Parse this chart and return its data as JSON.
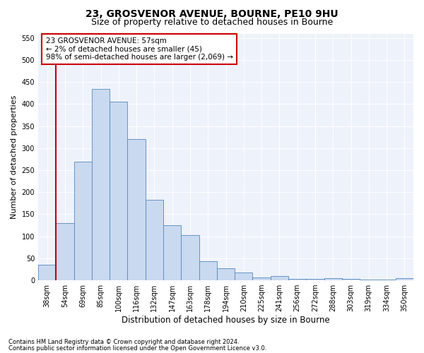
{
  "title1": "23, GROSVENOR AVENUE, BOURNE, PE10 9HU",
  "title2": "Size of property relative to detached houses in Bourne",
  "xlabel": "Distribution of detached houses by size in Bourne",
  "ylabel": "Number of detached properties",
  "categories": [
    "38sqm",
    "54sqm",
    "69sqm",
    "85sqm",
    "100sqm",
    "116sqm",
    "132sqm",
    "147sqm",
    "163sqm",
    "178sqm",
    "194sqm",
    "210sqm",
    "225sqm",
    "241sqm",
    "256sqm",
    "272sqm",
    "288sqm",
    "303sqm",
    "319sqm",
    "334sqm",
    "350sqm"
  ],
  "bar_values": [
    35,
    130,
    270,
    435,
    405,
    320,
    183,
    125,
    103,
    44,
    28,
    17,
    7,
    10,
    3,
    3,
    5,
    3,
    2,
    2,
    5
  ],
  "bar_color": "#c9d9f0",
  "bar_edge_color": "#5588bb",
  "vline_color": "#cc0000",
  "annotation_text": "23 GROSVENOR AVENUE: 57sqm\n← 2% of detached houses are smaller (45)\n98% of semi-detached houses are larger (2,069) →",
  "ylim": [
    0,
    560
  ],
  "yticks": [
    0,
    50,
    100,
    150,
    200,
    250,
    300,
    350,
    400,
    450,
    500,
    550
  ],
  "footer1": "Contains HM Land Registry data © Crown copyright and database right 2024.",
  "footer2": "Contains public sector information licensed under the Open Government Licence v3.0.",
  "title1_fontsize": 10,
  "title2_fontsize": 9,
  "tick_fontsize": 7,
  "xlabel_fontsize": 8.5,
  "ylabel_fontsize": 8,
  "annotation_fontsize": 7.5,
  "bg_color": "#eef2fb"
}
